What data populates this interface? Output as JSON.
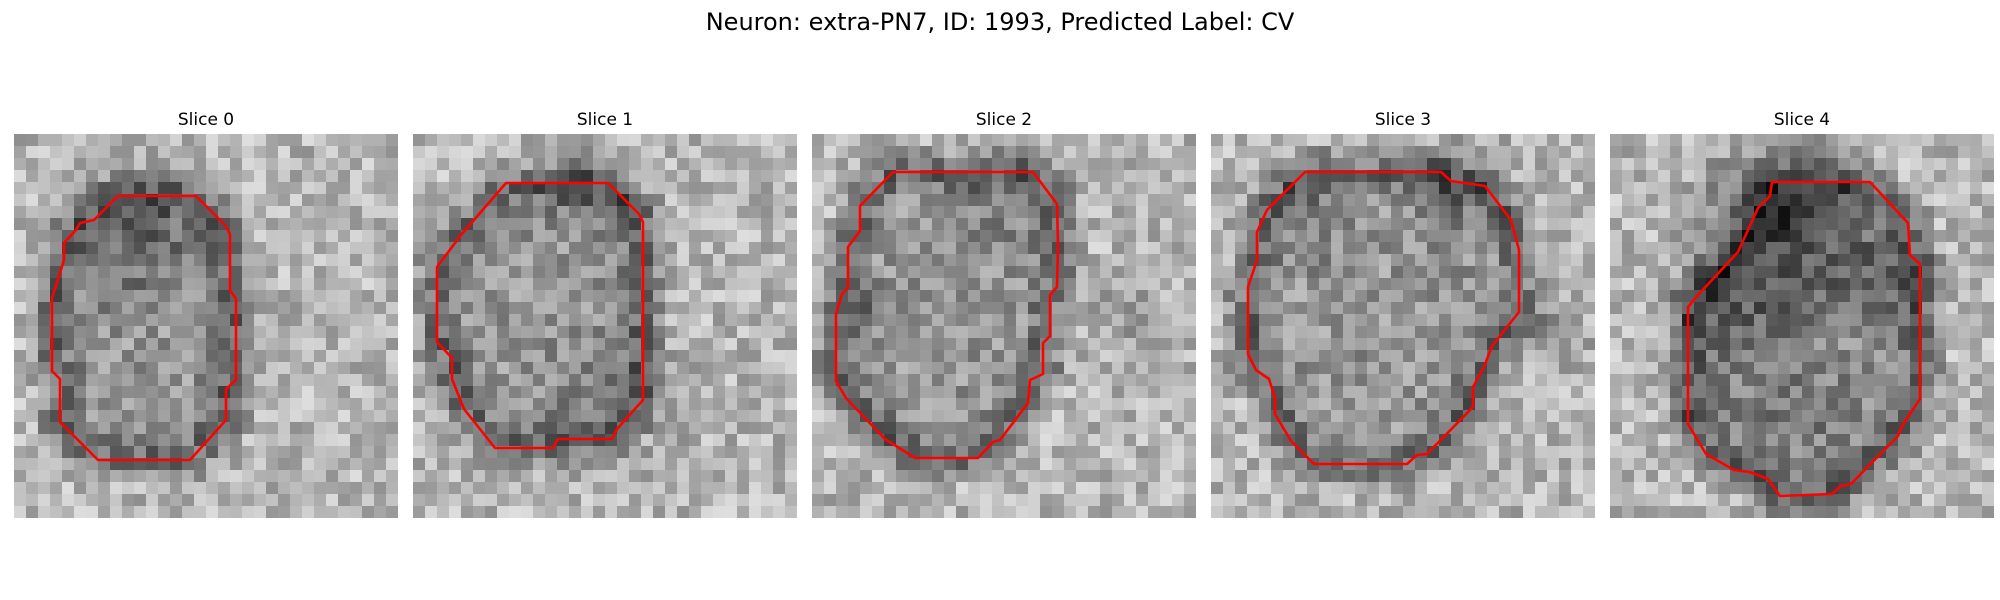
{
  "figure": {
    "title": "Neuron: extra-PN7, ID: 1993, Predicted Label: CV",
    "contour_color": "#ff0000",
    "colormap": "gray"
  },
  "slices": [
    {
      "title": "Slice 0"
    },
    {
      "title": "Slice 1"
    },
    {
      "title": "Slice 2"
    },
    {
      "title": "Slice 3"
    },
    {
      "title": "Slice 4"
    }
  ]
}
